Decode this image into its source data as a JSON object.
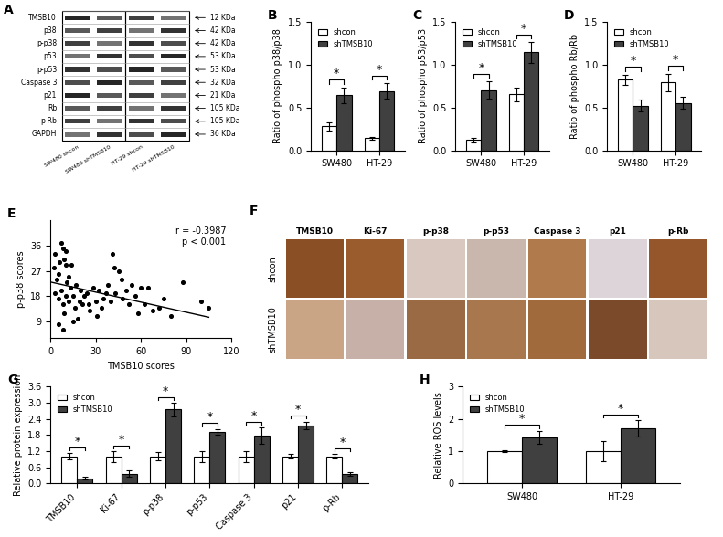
{
  "chart_data": [
    {
      "panel": "B",
      "type": "bar",
      "y_label": "Ratio of phospho p38/p38",
      "categories": [
        "SW480",
        "HT-29"
      ],
      "series": [
        {
          "name": "shcon",
          "color": "#ffffff",
          "values": [
            0.28,
            0.14
          ],
          "errors": [
            0.05,
            0.02
          ]
        },
        {
          "name": "shTMSB10",
          "color": "#404040",
          "values": [
            0.64,
            0.69
          ],
          "errors": [
            0.09,
            0.09
          ]
        }
      ],
      "significance": "*",
      "ylim": [
        0.0,
        1.5
      ],
      "yticks": [
        0.0,
        0.5,
        1.0,
        1.5
      ],
      "legend": "upper left"
    },
    {
      "panel": "C",
      "type": "bar",
      "y_label": "Ratio of phospho p53/p53",
      "categories": [
        "SW480",
        "HT-29"
      ],
      "series": [
        {
          "name": "shcon",
          "color": "#ffffff",
          "values": [
            0.12,
            0.65
          ],
          "errors": [
            0.03,
            0.08
          ]
        },
        {
          "name": "shTMSB10",
          "color": "#404040",
          "values": [
            0.7,
            1.14
          ],
          "errors": [
            0.1,
            0.12
          ]
        }
      ],
      "significance": "*",
      "ylim": [
        0.0,
        1.5
      ],
      "yticks": [
        0.0,
        0.5,
        1.0,
        1.5
      ],
      "legend": "upper left"
    },
    {
      "panel": "D",
      "type": "bar",
      "y_label": "Ratio of phospho Rb/Rb",
      "categories": [
        "SW480",
        "HT-29"
      ],
      "series": [
        {
          "name": "shcon",
          "color": "#ffffff",
          "values": [
            0.82,
            0.79
          ],
          "errors": [
            0.06,
            0.1
          ]
        },
        {
          "name": "shTMSB10",
          "color": "#404040",
          "values": [
            0.52,
            0.55
          ],
          "errors": [
            0.07,
            0.07
          ]
        }
      ],
      "significance": "*",
      "ylim": [
        0.0,
        1.5
      ],
      "yticks": [
        0.0,
        0.5,
        1.0,
        1.5
      ],
      "legend": "upper left"
    },
    {
      "panel": "E",
      "type": "scatter",
      "x_label": "TMSB10 scores",
      "y_label": "p-p38 scores",
      "x": [
        2,
        3,
        4,
        5,
        6,
        7,
        8,
        9,
        10,
        10,
        11,
        12,
        3,
        5,
        7,
        8,
        9,
        10,
        12,
        13,
        14,
        15,
        16,
        17,
        18,
        19,
        20,
        21,
        22,
        24,
        25,
        26,
        28,
        30,
        31,
        32,
        34,
        35,
        37,
        38,
        40,
        41,
        42,
        43,
        45,
        47,
        48,
        50,
        52,
        54,
        56,
        58,
        60,
        62,
        65,
        68,
        72,
        75,
        80,
        88,
        100,
        105,
        5,
        8,
        15
      ],
      "values": [
        28,
        33,
        24,
        26,
        30,
        37,
        35,
        31,
        34,
        29,
        23,
        25,
        19,
        17,
        20,
        15,
        12,
        18,
        16,
        21,
        29,
        18,
        14,
        22,
        10,
        16,
        20,
        15,
        18,
        19,
        15,
        13,
        21,
        16,
        11,
        20,
        14,
        17,
        19,
        22,
        16,
        33,
        28,
        19,
        27,
        24,
        17,
        20,
        15,
        22,
        18,
        12,
        21,
        15,
        21,
        13,
        14,
        17,
        11,
        23,
        16,
        14,
        8,
        6,
        9
      ],
      "fit_x": [
        0,
        105
      ],
      "fit_values": [
        23,
        10.5
      ],
      "annotations": [
        "r = -0.3987",
        "p < 0.001"
      ],
      "color": "#000000",
      "xlim": [
        0,
        120
      ],
      "xticks": [
        0,
        30,
        60,
        90,
        120
      ],
      "ylim": [
        3,
        45
      ],
      "yticks": [
        9,
        18,
        27,
        36
      ]
    },
    {
      "panel": "G",
      "type": "bar",
      "y_label": "Relative protein expression",
      "categories": [
        "TMSB10",
        "Ki-67",
        "p-p38",
        "p-p53",
        "Caspase 3",
        "p21",
        "p-Rb"
      ],
      "series": [
        {
          "name": "shcon",
          "color": "#ffffff",
          "values": [
            1.0,
            1.0,
            1.0,
            1.0,
            1.0,
            1.0,
            1.0
          ],
          "errors": [
            0.12,
            0.2,
            0.15,
            0.2,
            0.2,
            0.08,
            0.08
          ]
        },
        {
          "name": "shTMSB10",
          "color": "#404040",
          "values": [
            0.18,
            0.35,
            2.75,
            1.92,
            1.78,
            2.15,
            0.35
          ],
          "errors": [
            0.05,
            0.12,
            0.25,
            0.1,
            0.3,
            0.15,
            0.08
          ]
        }
      ],
      "significance": "*",
      "ylim": [
        0.0,
        3.6
      ],
      "yticks": [
        0.0,
        0.6,
        1.2,
        1.8,
        2.4,
        3.0,
        3.6
      ],
      "legend": "upper left"
    },
    {
      "panel": "H",
      "type": "bar",
      "y_label": "Relative ROS levels",
      "categories": [
        "SW480",
        "HT-29"
      ],
      "series": [
        {
          "name": "shcon",
          "color": "#ffffff",
          "values": [
            1.0,
            1.0
          ],
          "errors": [
            0.02,
            0.3
          ]
        },
        {
          "name": "shTMSB10",
          "color": "#404040",
          "values": [
            1.43,
            1.7
          ],
          "errors": [
            0.2,
            0.25
          ]
        }
      ],
      "significance": "*",
      "ylim": [
        0,
        3
      ],
      "yticks": [
        0,
        1,
        2,
        3
      ],
      "legend": "upper left"
    }
  ],
  "blot": {
    "panel": "A",
    "proteins": [
      "TMSB10",
      "p38",
      "p-p38",
      "p53",
      "p-p53",
      "Caspase 3",
      "p21",
      "Rb",
      "p-Rb",
      "GAPDH"
    ],
    "sizes": [
      "12 KDa",
      "42 KDa",
      "42 KDa",
      "53 KDa",
      "53 KDa",
      "32 KDa",
      "21 KDa",
      "105 KDa",
      "105 KDa",
      "36 KDa"
    ],
    "lanes": [
      "SW480 shcon",
      "SW480 shTMSB10",
      "HT-29 shcon",
      "HT-29 shTMSB10"
    ]
  },
  "ihc": {
    "panel": "F",
    "stains": [
      "TMSB10",
      "Ki-67",
      "p-p38",
      "p-p53",
      "Caspase 3",
      "p21",
      "p-Rb"
    ],
    "groups": [
      "shcon",
      "shTMSB10"
    ]
  }
}
